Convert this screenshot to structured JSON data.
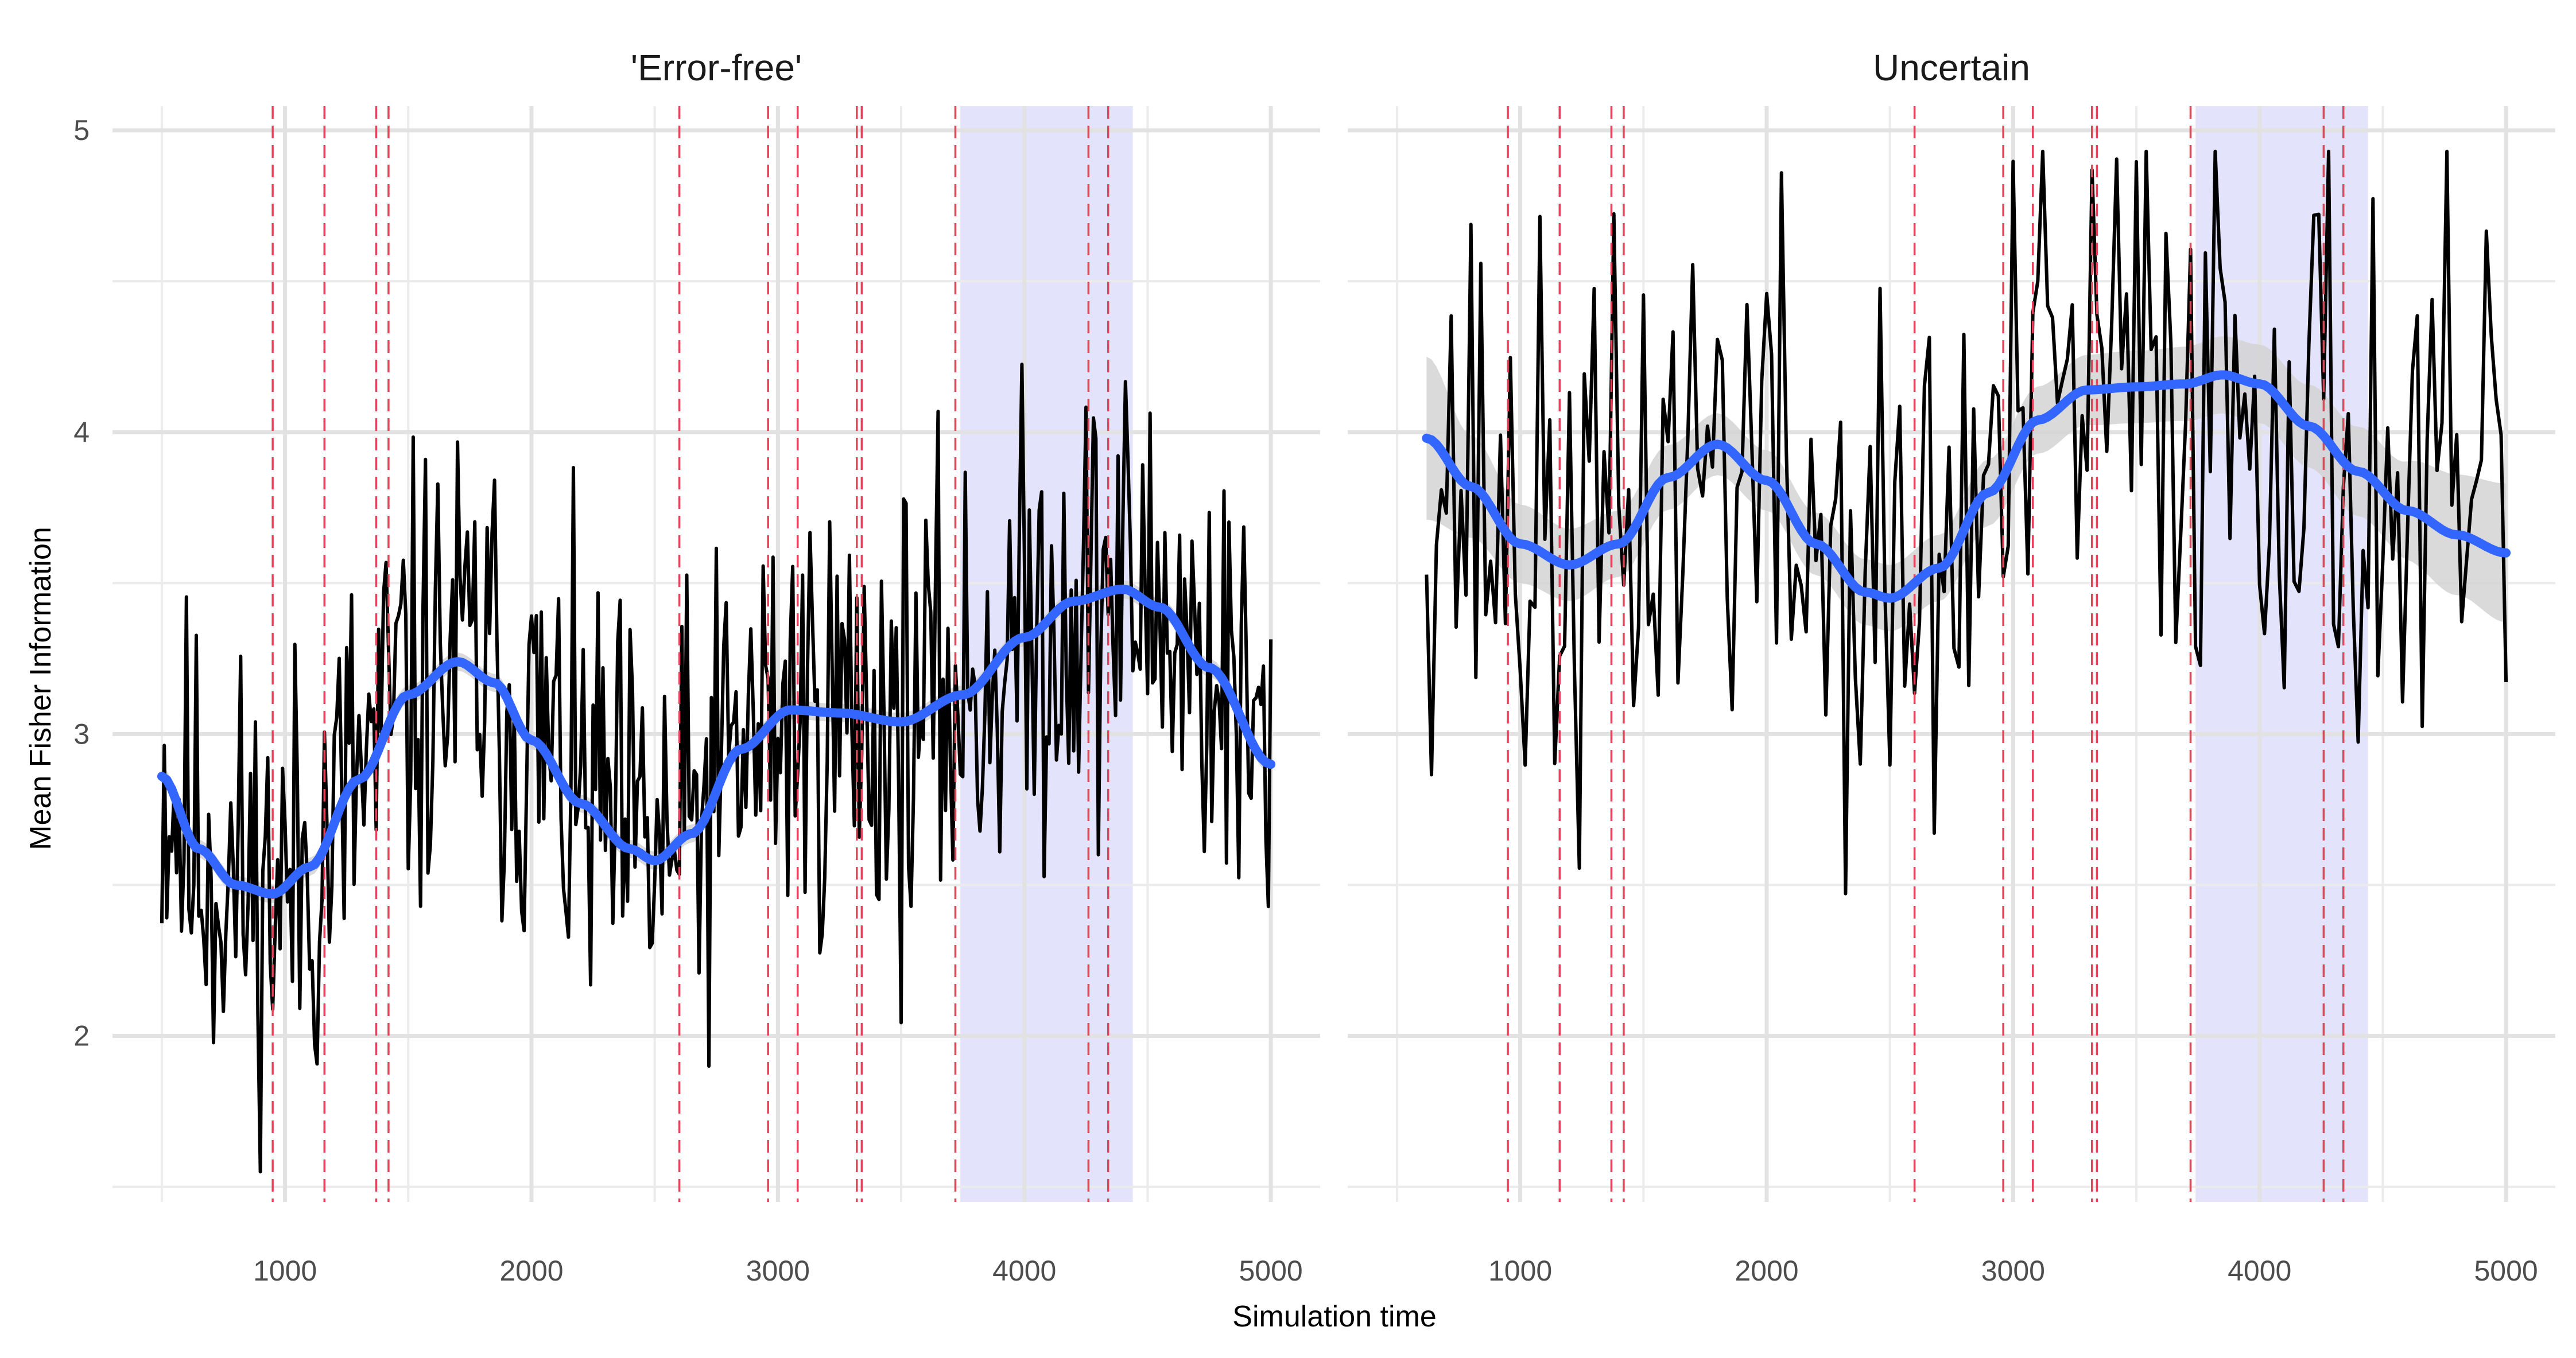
{
  "chart_data": {
    "type": "line",
    "xlabel": "Simulation time",
    "ylabel": "Mean Fisher Information",
    "xlim": [
      300,
      5200
    ],
    "ylim": [
      1.45,
      5.08
    ],
    "x_ticks": [
      1000,
      2000,
      3000,
      4000,
      5000
    ],
    "y_ticks": [
      2,
      3,
      4,
      5
    ],
    "grid": true,
    "vlines": [
      950,
      1160,
      1370,
      1420,
      2600,
      2960,
      3080,
      3320,
      3340,
      3720,
      4260,
      4340
    ],
    "vline_color": "#e0455a",
    "shaded_band": [
      3740,
      4440
    ],
    "band_color": "#e3e3fc",
    "raw_color": "#000000",
    "smooth_color": "#3366ff",
    "ribbon_color": "#d3d3d3",
    "panels": [
      {
        "title": "'Error-free'",
        "x_range": [
          500,
          5000
        ],
        "raw_step": 10,
        "raw_noise": 0.55,
        "raw_seed": 11,
        "smooth": [
          [
            500,
            2.86
          ],
          [
            650,
            2.62
          ],
          [
            800,
            2.5
          ],
          [
            950,
            2.47
          ],
          [
            1100,
            2.56
          ],
          [
            1300,
            2.85
          ],
          [
            1500,
            3.13
          ],
          [
            1700,
            3.24
          ],
          [
            1850,
            3.17
          ],
          [
            2000,
            2.98
          ],
          [
            2200,
            2.77
          ],
          [
            2400,
            2.62
          ],
          [
            2500,
            2.58
          ],
          [
            2650,
            2.67
          ],
          [
            2850,
            2.95
          ],
          [
            3050,
            3.08
          ],
          [
            3250,
            3.07
          ],
          [
            3500,
            3.04
          ],
          [
            3750,
            3.13
          ],
          [
            4000,
            3.32
          ],
          [
            4200,
            3.44
          ],
          [
            4400,
            3.48
          ],
          [
            4550,
            3.42
          ],
          [
            4750,
            3.22
          ],
          [
            5000,
            2.9
          ]
        ],
        "ribbon": [
          [
            500,
            0.03
          ],
          [
            5000,
            0.03
          ]
        ]
      },
      {
        "title": "Uncertain",
        "x_range": [
          620,
          5000
        ],
        "raw_step": 20,
        "raw_noise": 0.7,
        "raw_seed": 37,
        "smooth": [
          [
            620,
            3.98
          ],
          [
            800,
            3.82
          ],
          [
            1000,
            3.63
          ],
          [
            1200,
            3.56
          ],
          [
            1400,
            3.63
          ],
          [
            1600,
            3.85
          ],
          [
            1800,
            3.96
          ],
          [
            2000,
            3.84
          ],
          [
            2200,
            3.63
          ],
          [
            2400,
            3.47
          ],
          [
            2500,
            3.45
          ],
          [
            2700,
            3.55
          ],
          [
            2900,
            3.8
          ],
          [
            3100,
            4.04
          ],
          [
            3300,
            4.14
          ],
          [
            3500,
            4.15
          ],
          [
            3700,
            4.16
          ],
          [
            3850,
            4.19
          ],
          [
            4000,
            4.16
          ],
          [
            4200,
            4.02
          ],
          [
            4400,
            3.87
          ],
          [
            4600,
            3.74
          ],
          [
            4800,
            3.66
          ],
          [
            5000,
            3.6
          ]
        ],
        "ribbon": [
          [
            620,
            0.27
          ],
          [
            800,
            0.17
          ],
          [
            1000,
            0.13
          ],
          [
            1200,
            0.12
          ],
          [
            1400,
            0.11
          ],
          [
            2000,
            0.1
          ],
          [
            2500,
            0.11
          ],
          [
            3000,
            0.11
          ],
          [
            3500,
            0.12
          ],
          [
            4000,
            0.13
          ],
          [
            4500,
            0.15
          ],
          [
            4800,
            0.2
          ],
          [
            5000,
            0.23
          ]
        ]
      }
    ]
  }
}
